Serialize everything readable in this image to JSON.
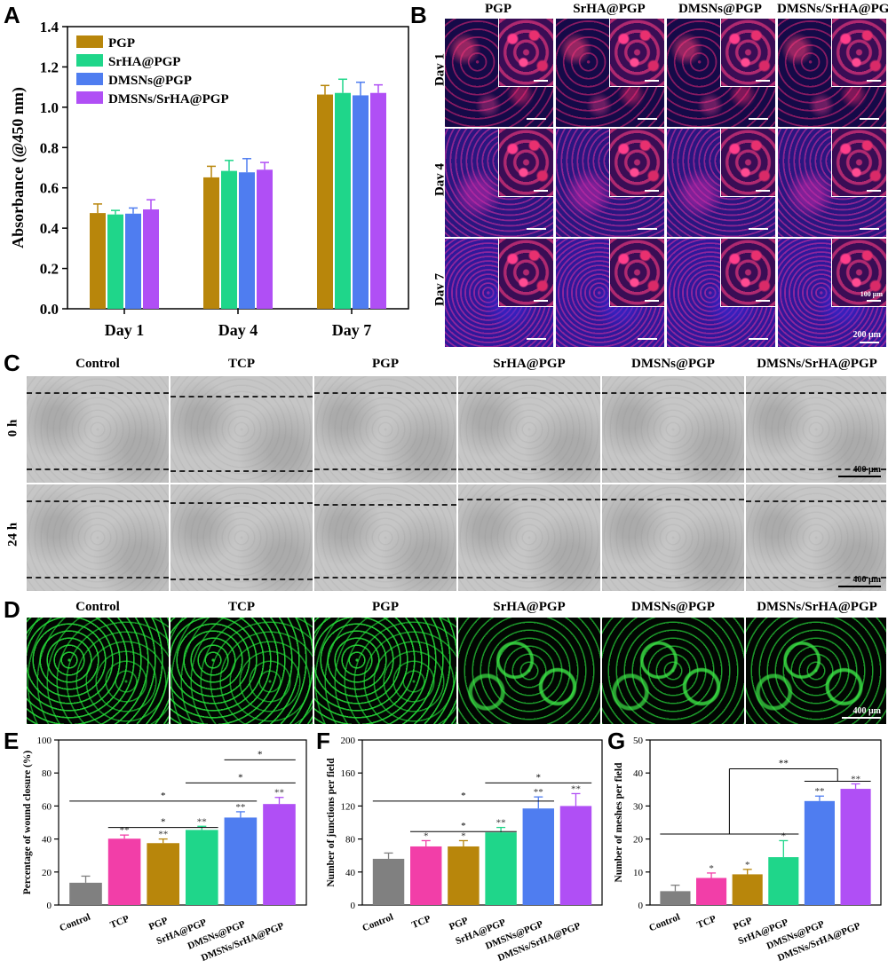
{
  "panel_letters": [
    "A",
    "B",
    "C",
    "D",
    "E",
    "F",
    "G"
  ],
  "colors": {
    "PGP": "#b8860b",
    "SrHA@PGP": "#1fd68a",
    "DMSNs@PGP": "#4f7df0",
    "DMSNs/SrHA@PGP": "#b04ff5",
    "Control": "#808080",
    "TCP": "#f23ea8"
  },
  "panelB": {
    "columns": [
      "PGP",
      "SrHA@PGP",
      "DMSNs@PGP",
      "DMSNs/SrHA@PGP"
    ],
    "rows": [
      "Day 1",
      "Day 4",
      "Day 7"
    ],
    "inset_scale": "100 μm",
    "scale": "200 μm"
  },
  "panelC": {
    "columns": [
      "Control",
      "TCP",
      "PGP",
      "SrHA@PGP",
      "DMSNs@PGP",
      "DMSNs/SrHA@PGP"
    ],
    "rows": [
      "0 h",
      "24 h"
    ],
    "scale": "400 μm"
  },
  "panelD": {
    "columns": [
      "Control",
      "TCP",
      "PGP",
      "SrHA@PGP",
      "DMSNs@PGP",
      "DMSNs/SrHA@PGP"
    ],
    "scale": "400 μm"
  },
  "chart_data": [
    {
      "panel": "A",
      "type": "bar",
      "categories": [
        "Day 1",
        "Day 4",
        "Day 7"
      ],
      "ylabel": "Absorbance (@450 nm)",
      "xlabel": "",
      "ylim": [
        0.0,
        1.4
      ],
      "yticks": [
        0.0,
        0.2,
        0.4,
        0.6,
        0.8,
        1.0,
        1.2,
        1.4
      ],
      "ytick_labels": [
        "0.0",
        "0.2",
        "0.4",
        "0.6",
        "0.8",
        "1.0",
        "1.2",
        "1.4"
      ],
      "legend_position": "top-left",
      "series": [
        {
          "name": "PGP",
          "color": "#b8860b",
          "values": [
            0.475,
            0.652,
            1.063
          ],
          "errors": [
            0.045,
            0.055,
            0.045
          ]
        },
        {
          "name": "SrHA@PGP",
          "color": "#1fd68a",
          "values": [
            0.468,
            0.684,
            1.071
          ],
          "errors": [
            0.02,
            0.052,
            0.068
          ]
        },
        {
          "name": "DMSNs@PGP",
          "color": "#4f7df0",
          "values": [
            0.472,
            0.677,
            1.059
          ],
          "errors": [
            0.028,
            0.068,
            0.065
          ]
        },
        {
          "name": "DMSNs/SrHA@PGP",
          "color": "#b04ff5",
          "values": [
            0.493,
            0.69,
            1.071
          ],
          "errors": [
            0.048,
            0.036,
            0.04
          ]
        }
      ]
    },
    {
      "panel": "E",
      "type": "bar",
      "categories": [
        "Control",
        "TCP",
        "PGP",
        "SrHA@PGP",
        "DMSNs@PGP",
        "DMSNs/SrHA@PGP"
      ],
      "ylabel": "Percentage of wound closure (%)",
      "xlabel": "",
      "ylim": [
        0,
        100
      ],
      "yticks": [
        0,
        20,
        40,
        60,
        80,
        100
      ],
      "values": [
        13.5,
        40.2,
        37.5,
        45.5,
        53.0,
        61.2
      ],
      "errors": [
        4.0,
        2.2,
        2.5,
        2.2,
        3.5,
        4.0
      ],
      "colors": [
        "#808080",
        "#f23ea8",
        "#b8860b",
        "#1fd68a",
        "#4f7df0",
        "#b04ff5"
      ],
      "bar_marks": [
        "",
        "**",
        "**",
        "**",
        "**",
        "**"
      ],
      "brackets": [
        {
          "from": 1,
          "to": 3,
          "level": 47,
          "mark": "*"
        },
        {
          "from": 0,
          "to": 4,
          "level": 63,
          "mark": "*"
        },
        {
          "from": 3,
          "to": 5,
          "level": 74,
          "mark": "*"
        },
        {
          "from": 4,
          "to": 5,
          "level": 88,
          "mark": "*"
        }
      ]
    },
    {
      "panel": "F",
      "type": "bar",
      "categories": [
        "Control",
        "TCP",
        "PGP",
        "SrHA@PGP",
        "DMSNs@PGP",
        "DMSNs/SrHA@PGP"
      ],
      "ylabel": "Number of junctions per field",
      "xlabel": "",
      "ylim": [
        0,
        200
      ],
      "yticks": [
        0,
        40,
        80,
        120,
        160,
        200
      ],
      "values": [
        56,
        71,
        71,
        88,
        117,
        120
      ],
      "errors": [
        7,
        7,
        7,
        6,
        14,
        15
      ],
      "colors": [
        "#808080",
        "#f23ea8",
        "#b8860b",
        "#1fd68a",
        "#4f7df0",
        "#b04ff5"
      ],
      "bar_marks": [
        "",
        "*",
        "*",
        "**",
        "**",
        "**"
      ],
      "brackets": [
        {
          "from": 1,
          "to": 3,
          "level": 89,
          "mark": "*"
        },
        {
          "from": 0,
          "to": 4,
          "level": 126,
          "mark": "*"
        },
        {
          "from": 3,
          "to": 5,
          "level": 148,
          "mark": "*"
        }
      ]
    },
    {
      "panel": "G",
      "type": "bar",
      "categories": [
        "Control",
        "TCP",
        "PGP",
        "SrHA@PGP",
        "DMSNs@PGP",
        "DMSNs/SrHA@PGP"
      ],
      "ylabel": "Number of meshes per field",
      "xlabel": "",
      "ylim": [
        0,
        50
      ],
      "yticks": [
        0,
        10,
        20,
        30,
        40,
        50
      ],
      "values": [
        4.2,
        8.2,
        9.3,
        14.5,
        31.5,
        35.2
      ],
      "errors": [
        1.8,
        1.5,
        1.5,
        5.0,
        1.5,
        1.5
      ],
      "colors": [
        "#808080",
        "#f23ea8",
        "#b8860b",
        "#1fd68a",
        "#4f7df0",
        "#b04ff5"
      ],
      "bar_marks": [
        "",
        "*",
        "*",
        "*",
        "**",
        "**"
      ],
      "brackets": [
        {
          "from": 0,
          "to": 3,
          "level": 21.5,
          "mark": "",
          "tail_to": 5,
          "mark_top": "**",
          "top_level": 37.5
        }
      ]
    }
  ]
}
